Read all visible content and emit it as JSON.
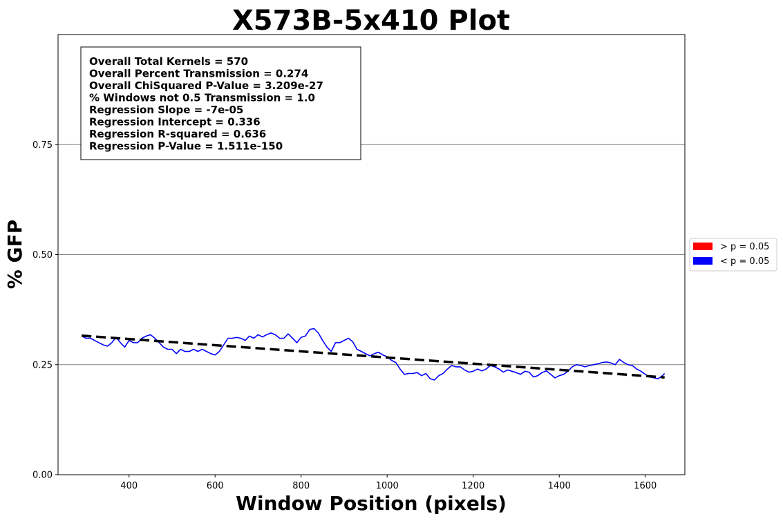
{
  "chart_data": {
    "type": "line",
    "title": "X573B-5x410 Plot",
    "xlabel": "Window Position (pixels)",
    "ylabel": "% GFP",
    "xlim": [
      235,
      1692
    ],
    "ylim": [
      0,
      1.0
    ],
    "xticks": [
      400,
      600,
      800,
      1000,
      1200,
      1400,
      1600
    ],
    "yticks": [
      0.0,
      0.25,
      0.5,
      0.75
    ],
    "ytick_labels": [
      "0.00",
      "0.25",
      "0.50",
      "0.75"
    ],
    "grid": "horizontal",
    "stats_box": [
      "Overall Total Kernels = 570",
      "Overall Percent Transmission = 0.274",
      "Overall ChiSquared P-Value = 3.209e-27",
      "% Windows not 0.5 Transmission = 1.0",
      "Regression Slope = -7e-05",
      "Regression Intercept = 0.336",
      "Regression R-squared = 0.636",
      "Regression P-Value = 1.511e-150"
    ],
    "legend": {
      "placement": "right",
      "entries": [
        {
          "label": "> p = 0.05",
          "color": "#ff0000"
        },
        {
          "label": "< p = 0.05",
          "color": "#0000ff"
        }
      ]
    },
    "series": [
      {
        "color": "#0000ff",
        "x": [
          290,
          300,
          310,
          320,
          330,
          340,
          350,
          360,
          370,
          380,
          390,
          400,
          410,
          420,
          430,
          440,
          450,
          460,
          470,
          480,
          490,
          500,
          510,
          520,
          530,
          540,
          550,
          560,
          570,
          580,
          590,
          600,
          610,
          620,
          630,
          640,
          650,
          660,
          670,
          680,
          690,
          700,
          710,
          720,
          730,
          740,
          750,
          760,
          770,
          780,
          790,
          800,
          810,
          820,
          830,
          840,
          850,
          860,
          870,
          880,
          890,
          900,
          910,
          920,
          930,
          940,
          950,
          960,
          970,
          980,
          990,
          1000,
          1010,
          1020,
          1030,
          1040,
          1050,
          1060,
          1070,
          1080,
          1090,
          1100,
          1110,
          1120,
          1130,
          1140,
          1150,
          1160,
          1170,
          1180,
          1190,
          1200,
          1210,
          1220,
          1230,
          1240,
          1250,
          1260,
          1270,
          1280,
          1290,
          1300,
          1310,
          1320,
          1330,
          1340,
          1350,
          1360,
          1370,
          1380,
          1390,
          1400,
          1410,
          1420,
          1430,
          1440,
          1450,
          1460,
          1470,
          1480,
          1490,
          1500,
          1510,
          1520,
          1530,
          1540,
          1550,
          1560,
          1570,
          1580,
          1590,
          1600,
          1610,
          1620,
          1630,
          1640,
          1645
        ],
        "y": [
          0.315,
          0.31,
          0.31,
          0.305,
          0.3,
          0.295,
          0.292,
          0.3,
          0.312,
          0.3,
          0.29,
          0.305,
          0.3,
          0.3,
          0.31,
          0.315,
          0.318,
          0.31,
          0.3,
          0.29,
          0.285,
          0.285,
          0.275,
          0.285,
          0.28,
          0.28,
          0.285,
          0.28,
          0.285,
          0.28,
          0.275,
          0.272,
          0.28,
          0.295,
          0.31,
          0.31,
          0.312,
          0.31,
          0.305,
          0.315,
          0.31,
          0.318,
          0.313,
          0.318,
          0.322,
          0.318,
          0.31,
          0.31,
          0.32,
          0.31,
          0.3,
          0.312,
          0.315,
          0.33,
          0.332,
          0.322,
          0.305,
          0.29,
          0.28,
          0.3,
          0.3,
          0.305,
          0.31,
          0.302,
          0.285,
          0.28,
          0.275,
          0.27,
          0.275,
          0.278,
          0.272,
          0.268,
          0.26,
          0.255,
          0.24,
          0.228,
          0.23,
          0.23,
          0.232,
          0.225,
          0.23,
          0.218,
          0.215,
          0.225,
          0.23,
          0.24,
          0.248,
          0.245,
          0.245,
          0.238,
          0.233,
          0.235,
          0.24,
          0.236,
          0.24,
          0.248,
          0.245,
          0.24,
          0.233,
          0.238,
          0.235,
          0.232,
          0.228,
          0.235,
          0.233,
          0.222,
          0.225,
          0.232,
          0.236,
          0.228,
          0.22,
          0.225,
          0.228,
          0.235,
          0.245,
          0.25,
          0.248,
          0.245,
          0.248,
          0.25,
          0.252,
          0.255,
          0.256,
          0.254,
          0.25,
          0.262,
          0.255,
          0.25,
          0.248,
          0.24,
          0.235,
          0.228,
          0.222,
          0.22,
          0.218,
          0.225,
          0.23
        ]
      },
      {
        "style": "dashed-regression",
        "color": "#000000",
        "x": [
          290,
          1645
        ],
        "y": [
          0.316,
          0.221
        ]
      }
    ]
  }
}
